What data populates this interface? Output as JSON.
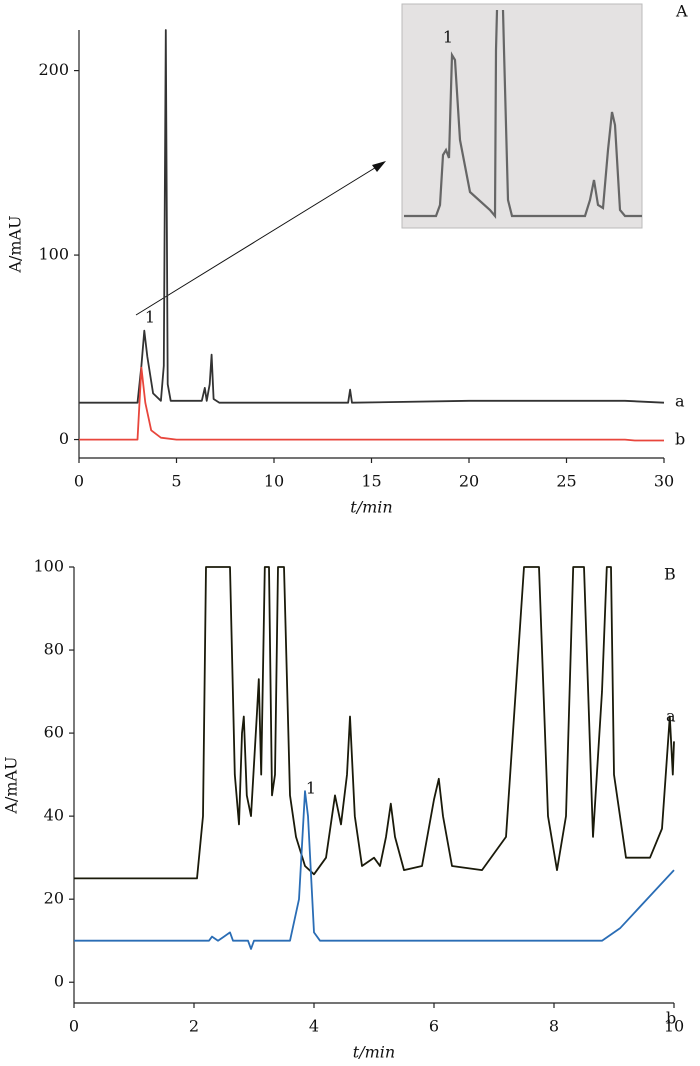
{
  "chart_data": [
    {
      "type": "line",
      "panel": "A",
      "xlabel": "t/min",
      "ylabel": "A/mAU",
      "annotations": [
        "1"
      ],
      "xlim": [
        0,
        30
      ],
      "xticks": [
        0,
        5,
        10,
        15,
        20,
        25,
        30
      ],
      "ylim": [
        -10,
        222
      ],
      "yticks": [
        0,
        100,
        200
      ],
      "series": [
        {
          "name": "a",
          "color": "#333333",
          "x": [
            0,
            3.0,
            3.2,
            3.35,
            3.5,
            3.8,
            4.2,
            4.35,
            4.45,
            4.55,
            4.7,
            6.3,
            6.45,
            6.55,
            6.7,
            6.8,
            6.9,
            7.2,
            13.8,
            13.9,
            14.0,
            20,
            28,
            30
          ],
          "values": [
            20,
            20,
            40,
            59,
            45,
            25,
            21,
            40,
            222,
            30,
            21,
            21,
            28,
            21,
            30,
            46,
            22,
            20,
            20,
            27,
            20,
            21,
            21,
            20
          ]
        },
        {
          "name": "b",
          "color": "#e8463c",
          "x": [
            0,
            3.0,
            3.2,
            3.4,
            3.7,
            4.2,
            5,
            28,
            28.5,
            30
          ],
          "values": [
            0,
            0,
            39,
            20,
            5,
            1,
            0,
            0,
            -0.5,
            -0.5
          ]
        }
      ]
    },
    {
      "type": "line",
      "panel": "B",
      "xlabel": "t/min",
      "ylabel": "A/mAU",
      "annotations": [
        "1"
      ],
      "xlim": [
        0,
        10
      ],
      "xticks": [
        0,
        2,
        4,
        6,
        8,
        10
      ],
      "ylim": [
        -5,
        100
      ],
      "yticks": [
        0,
        20,
        40,
        60,
        80,
        100
      ],
      "series": [
        {
          "name": "a",
          "color": "#1a1a0a",
          "x": [
            0,
            2.05,
            2.15,
            2.2,
            2.6,
            2.68,
            2.75,
            2.8,
            2.83,
            2.88,
            2.95,
            3.05,
            3.08,
            3.12,
            3.18,
            3.25,
            3.3,
            3.35,
            3.4,
            3.5,
            3.6,
            3.7,
            3.85,
            4,
            4.2,
            4.35,
            4.45,
            4.55,
            4.6,
            4.68,
            4.8,
            5,
            5.1,
            5.2,
            5.28,
            5.35,
            5.5,
            5.8,
            6,
            6.08,
            6.15,
            6.3,
            6.8,
            7.2,
            7.5,
            7.75,
            7.9,
            8.05,
            8.2,
            8.32,
            8.5,
            8.65,
            8.8,
            8.88,
            8.95,
            9,
            9.2,
            9.6,
            9.8,
            9.93,
            9.98,
            10
          ],
          "values": [
            25,
            25,
            40,
            100,
            100,
            50,
            38,
            60,
            64,
            45,
            40,
            65,
            73,
            50,
            100,
            100,
            45,
            50,
            100,
            100,
            45,
            35,
            28,
            26,
            30,
            45,
            38,
            50,
            64,
            40,
            28,
            30,
            28,
            35,
            43,
            35,
            27,
            28,
            44,
            49,
            40,
            28,
            27,
            35,
            100,
            100,
            40,
            27,
            40,
            100,
            100,
            35,
            70,
            100,
            100,
            50,
            30,
            30,
            37,
            64,
            50,
            58
          ]
        },
        {
          "name": "b",
          "color": "#2a6db5",
          "x": [
            0,
            2.25,
            2.3,
            2.4,
            2.5,
            2.6,
            2.65,
            2.9,
            2.95,
            3.0,
            3.6,
            3.75,
            3.85,
            3.9,
            4,
            4.1,
            8.8,
            9.1,
            10
          ],
          "values": [
            10,
            10,
            11,
            10,
            11,
            12,
            10,
            10,
            8,
            10,
            10,
            20,
            46,
            40,
            12,
            10,
            10,
            13,
            27
          ]
        }
      ]
    }
  ]
}
